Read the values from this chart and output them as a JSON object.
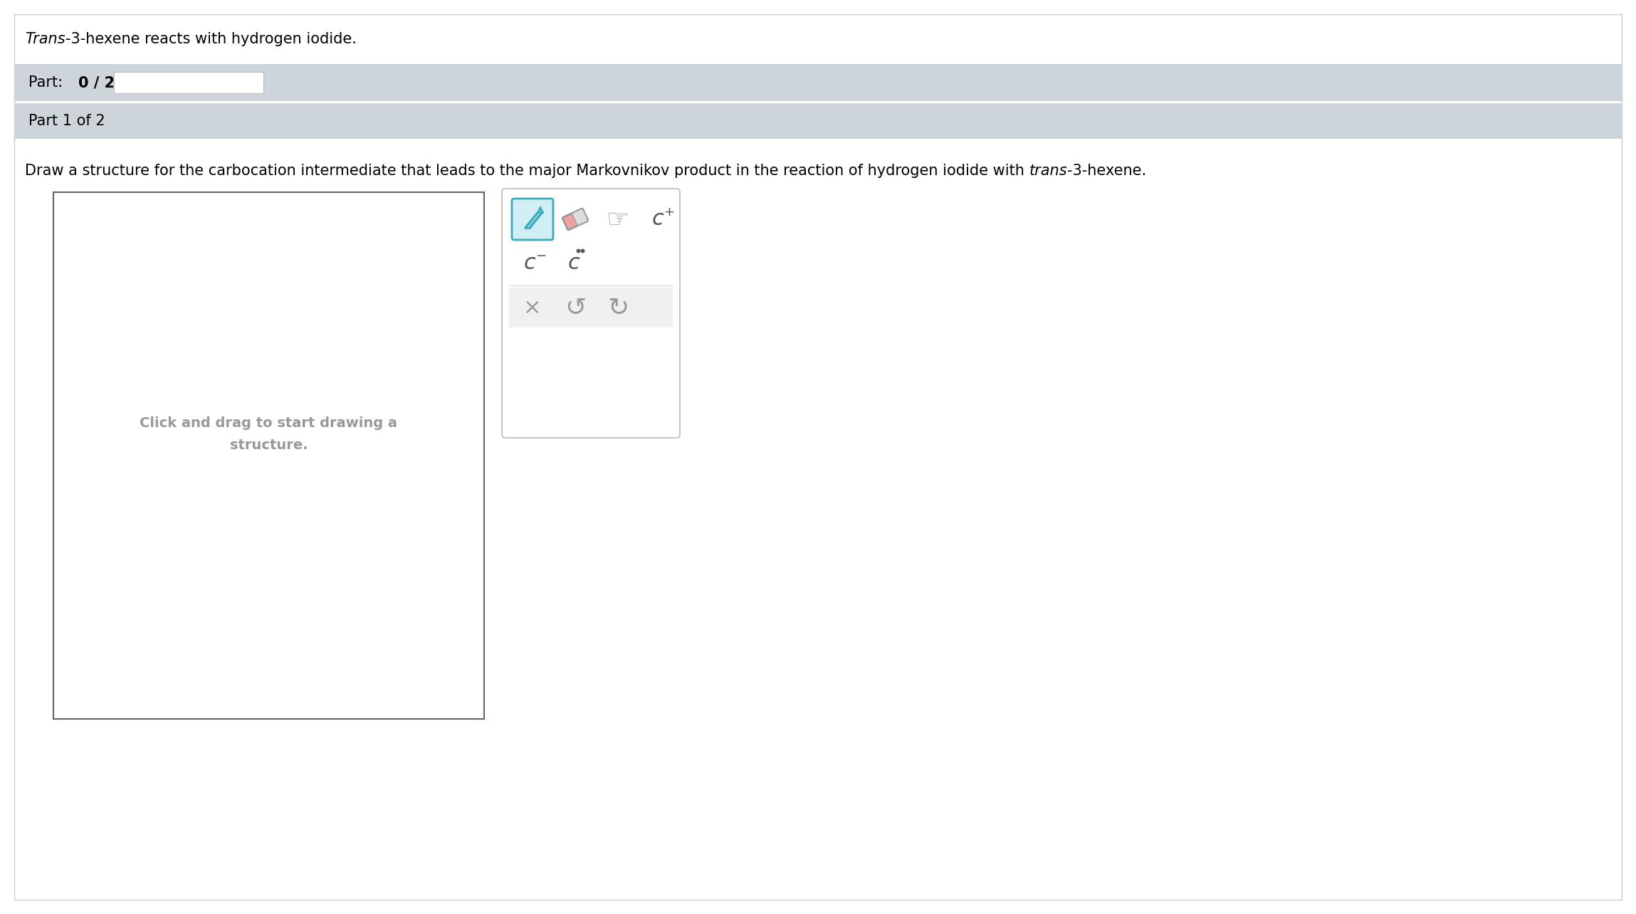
{
  "bg_color": "#ffffff",
  "page_bg": "#ffffff",
  "border_color": "#cccccc",
  "title_text_italic": "Trans",
  "title_text_rest": "-3-hexene reacts with hydrogen iodide.",
  "title_fontsize": 15,
  "part_bar_color": "#cdd5db",
  "part_bar_text_bold": "0 / 2",
  "part_bar_label": "Part:",
  "part_bar_fontsize": 15,
  "progress_bar_color": "#ffffff",
  "progress_bar_border": "#bbbbbb",
  "part1_bar_text": "Part 1 of 2",
  "part1_bar_fontsize": 15,
  "instruction_pre": "Draw a structure for the carbocation intermediate that leads to the major Markovnikov product in the reaction of hydrogen iodide with ",
  "instruction_italic": "trans",
  "instruction_post": "-3-hexene.",
  "instruction_fontsize": 15,
  "draw_box_edgecolor": "#666666",
  "draw_box_facecolor": "#ffffff",
  "click_text_line1": "Click and drag to start drawing a",
  "click_text_line2": "structure.",
  "click_text_color": "#999999",
  "click_text_fontsize": 14,
  "toolbar_bg": "#ffffff",
  "toolbar_border": "#bbbbbb",
  "teal_color": "#3aacba",
  "icon_selected_bg": "#d0eef3",
  "icon_gray": "#999999",
  "icon_dark": "#555555"
}
